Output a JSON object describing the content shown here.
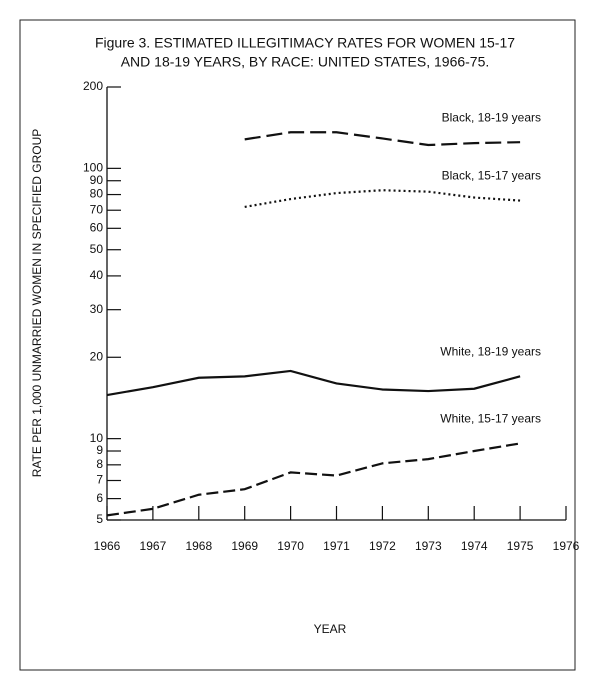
{
  "chart_data": {
    "type": "line",
    "title": [
      "Figure 3. ESTIMATED ILLEGITIMACY RATES FOR WOMEN 15-17",
      "AND 18-19 YEARS, BY RACE: UNITED STATES, 1966-75."
    ],
    "x_label": "YEAR",
    "y_label": "RATE PER 1,000 UNMARRIED WOMEN IN SPECIFIED GROUP",
    "x": [
      1966,
      1967,
      1968,
      1969,
      1970,
      1971,
      1972,
      1973,
      1974,
      1975
    ],
    "xlim": [
      1966,
      1976
    ],
    "xticks": [
      1966,
      1967,
      1968,
      1969,
      1970,
      1971,
      1972,
      1973,
      1974,
      1975,
      1976
    ],
    "ylim": [
      5,
      200
    ],
    "yticks": [
      5,
      6,
      7,
      8,
      9,
      10,
      20,
      30,
      40,
      50,
      60,
      70,
      80,
      90,
      100,
      200
    ],
    "log_scale_y": true,
    "grid": false,
    "series": [
      {
        "name": "Black, 18-19 years",
        "color": "#111111",
        "line_style": "long-dashed",
        "values": [
          null,
          null,
          null,
          128,
          136,
          136,
          129,
          122,
          124,
          125
        ]
      },
      {
        "name": "Black, 15-17 years",
        "color": "#111111",
        "line_style": "dotted",
        "values": [
          null,
          null,
          null,
          72,
          77,
          81,
          83,
          82,
          78,
          76
        ]
      },
      {
        "name": "White, 18-19 years",
        "color": "#111111",
        "line_style": "solid",
        "values": [
          14.5,
          15.5,
          16.8,
          17.0,
          17.8,
          16.0,
          15.2,
          15.0,
          15.3,
          17.0
        ]
      },
      {
        "name": "White, 15-17 years",
        "color": "#111111",
        "line_style": "dashed",
        "values": [
          5.2,
          5.5,
          6.2,
          6.5,
          7.5,
          7.3,
          8.1,
          8.4,
          9.0,
          9.6
        ]
      }
    ]
  }
}
